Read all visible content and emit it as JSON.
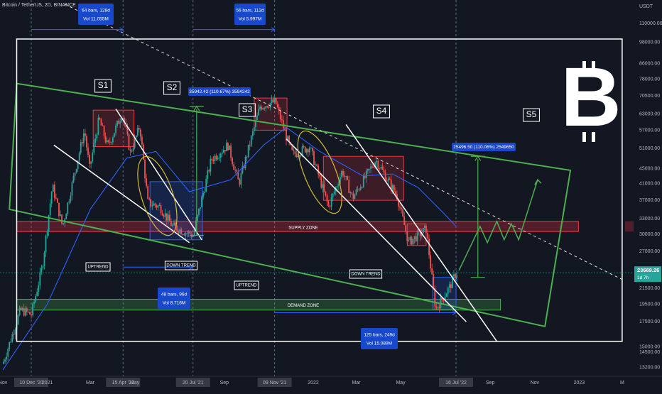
{
  "header": {
    "symbol": "Bitcoin / TetherUS, 2D, BINANCE"
  },
  "currency": "USDT",
  "colors": {
    "background": "#131722",
    "candle_up": "#26a69a",
    "candle_down": "#ef5350",
    "channel": "#4caf50",
    "moving_average": "#2962ff",
    "zone_fill": "#f23645",
    "demand_fill": "#4caf50",
    "projection": "#4caf50",
    "last_price_badge": "#26a69a"
  },
  "chart_data": {
    "type": "candlestick",
    "title": "Bitcoin / TetherUS, 2D, BINANCE",
    "y_scale": "log",
    "ylim": [
      12500,
      125000
    ],
    "x_range": [
      "2020-11-01",
      "2023-03-05"
    ],
    "x_ticks": [
      "Nov",
      "10 Dec '20",
      "2021",
      "Mar",
      "15 Apr '21",
      "May",
      "Jul",
      "20 Jul '21",
      "Sep",
      "09 Nov '21",
      "2022",
      "Mar",
      "May",
      "16 Jul '22",
      "Sep",
      "Nov",
      "2023",
      "M"
    ],
    "x_tick_dates": [
      "2020-11-01",
      "2020-12-10",
      "2021-01-01",
      "2021-03-01",
      "2021-04-15",
      "2021-05-01",
      "2021-07-01",
      "2021-07-20",
      "2021-09-01",
      "2021-11-09",
      "2022-01-01",
      "2022-03-01",
      "2022-05-01",
      "2022-07-16",
      "2022-09-01",
      "2022-11-01",
      "2023-01-01",
      "2023-03-01"
    ],
    "y_ticks": [
      110000,
      98000,
      86000,
      78000,
      70500,
      63000,
      57000,
      51000,
      45000,
      41000,
      37000,
      33000,
      30000,
      27000,
      24000,
      21500,
      19500,
      17500,
      15000,
      14500,
      13200
    ],
    "last_price": {
      "value": "23669.26",
      "countdown": "1d 7h"
    },
    "price_path": [
      [
        "2020-11-01",
        13500
      ],
      [
        "2020-11-25",
        18800
      ],
      [
        "2020-12-10",
        18300
      ],
      [
        "2020-12-25",
        24500
      ],
      [
        "2021-01-08",
        40500
      ],
      [
        "2021-01-22",
        31500
      ],
      [
        "2021-02-10",
        46000
      ],
      [
        "2021-02-21",
        57000
      ],
      [
        "2021-02-28",
        45000
      ],
      [
        "2021-03-13",
        61200
      ],
      [
        "2021-03-25",
        51500
      ],
      [
        "2021-04-14",
        63500
      ],
      [
        "2021-04-25",
        49500
      ],
      [
        "2021-05-08",
        58500
      ],
      [
        "2021-05-19",
        36500
      ],
      [
        "2021-06-05",
        35500
      ],
      [
        "2021-06-22",
        31500
      ],
      [
        "2021-07-20",
        29800
      ],
      [
        "2021-08-14",
        47500
      ],
      [
        "2021-09-06",
        52000
      ],
      [
        "2021-09-21",
        41000
      ],
      [
        "2021-10-20",
        66000
      ],
      [
        "2021-11-10",
        68000
      ],
      [
        "2021-11-26",
        54000
      ],
      [
        "2021-12-04",
        49000
      ],
      [
        "2021-12-27",
        51500
      ],
      [
        "2022-01-22",
        35500
      ],
      [
        "2022-02-10",
        44500
      ],
      [
        "2022-02-24",
        37500
      ],
      [
        "2022-03-28",
        47500
      ],
      [
        "2022-04-26",
        38000
      ],
      [
        "2022-05-12",
        28500
      ],
      [
        "2022-06-05",
        31000
      ],
      [
        "2022-06-18",
        18900
      ],
      [
        "2022-07-08",
        21800
      ],
      [
        "2022-07-16",
        23669
      ]
    ],
    "ma_path": [
      [
        "2020-11-01",
        13000
      ],
      [
        "2021-01-01",
        19500
      ],
      [
        "2021-03-01",
        35000
      ],
      [
        "2021-04-20",
        48000
      ],
      [
        "2021-05-30",
        50000
      ],
      [
        "2021-07-15",
        39000
      ],
      [
        "2021-09-10",
        42000
      ],
      [
        "2021-10-25",
        52000
      ],
      [
        "2021-11-25",
        58000
      ],
      [
        "2022-01-10",
        50000
      ],
      [
        "2022-03-10",
        43000
      ],
      [
        "2022-04-20",
        43500
      ],
      [
        "2022-05-25",
        40000
      ],
      [
        "2022-06-30",
        34000
      ],
      [
        "2022-07-16",
        31500
      ]
    ],
    "labels": {
      "s1": "S1",
      "s2": "S2",
      "s3": "S3",
      "s4": "S4",
      "s5": "S5",
      "uptrend_1": "UPTREND",
      "downtrend_1": "DOWN TREND",
      "uptrend_2": "UPTREND",
      "downtrend_2": "DOWN TREND",
      "supply_zone": "SUPPLY ZONE",
      "demand_zone": "DEMAND ZONE"
    },
    "measures": {
      "m1_line1": "64 bars, 128d",
      "m1_line2": "Vol 11.055M",
      "m2_line1": "56 bars, 112d",
      "m2_line2": "Vol 5.997M",
      "m3_line1": "48 bars, 96d",
      "m3_line2": "Vol 8.716M",
      "m4_line1": "125 bars, 249d",
      "m4_line2": "Vol 15.089M",
      "gain1": "35942.42 (110.67%) 3594242",
      "gain2": "25496.50 (110.06%) 2549650"
    },
    "bitcoin_logo_icon": "bitcoin-logo-icon"
  }
}
